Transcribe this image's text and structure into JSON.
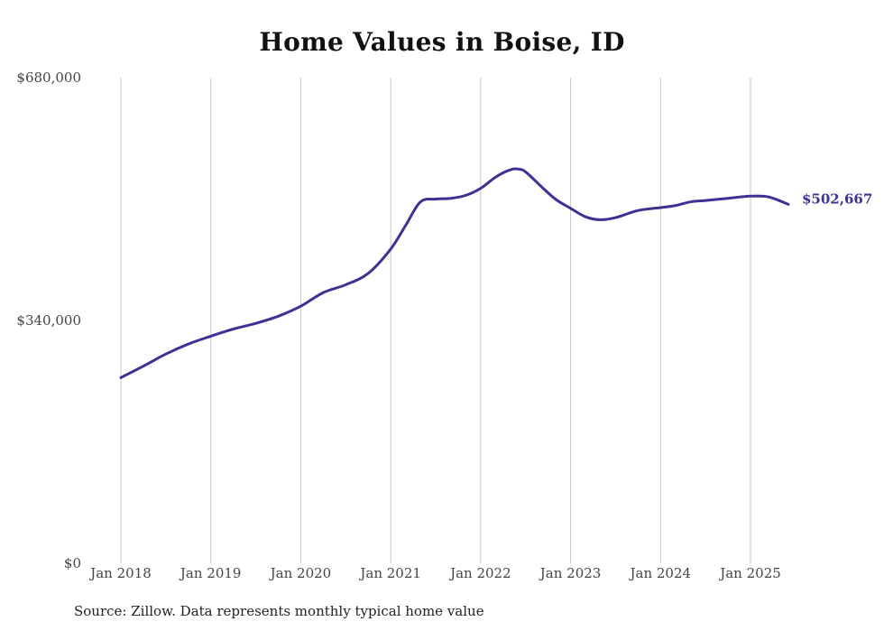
{
  "chart_data": {
    "type": "line",
    "title": "Home Values in Boise, ID",
    "source": "Source: Zillow. Data represents monthly typical home value",
    "ylim": [
      0,
      680000
    ],
    "y_ticks": [
      {
        "value": 0,
        "label": "$0"
      },
      {
        "value": 340000,
        "label": "$340,000"
      },
      {
        "value": 680000,
        "label": "$680,000"
      }
    ],
    "x_ticks": [
      {
        "value": 2018.0,
        "label": "Jan 2018"
      },
      {
        "value": 2019.0,
        "label": "Jan 2019"
      },
      {
        "value": 2020.0,
        "label": "Jan 2020"
      },
      {
        "value": 2021.0,
        "label": "Jan 2021"
      },
      {
        "value": 2022.0,
        "label": "Jan 2022"
      },
      {
        "value": 2023.0,
        "label": "Jan 2023"
      },
      {
        "value": 2024.0,
        "label": "Jan 2024"
      },
      {
        "value": 2025.0,
        "label": "Jan 2025"
      }
    ],
    "xlim": [
      2017.98,
      2025.44
    ],
    "grid": "vertical",
    "line_color": "#3b3292",
    "end_label": "$502,667",
    "series": [
      {
        "x": [
          2018.0,
          2018.25,
          2018.5,
          2018.75,
          2019.0,
          2019.25,
          2019.5,
          2019.75,
          2020.0,
          2020.25,
          2020.5,
          2020.75,
          2021.0,
          2021.17,
          2021.33,
          2021.5,
          2021.67,
          2021.83,
          2022.0,
          2022.17,
          2022.33,
          2022.42,
          2022.5,
          2022.67,
          2022.83,
          2023.0,
          2023.17,
          2023.33,
          2023.5,
          2023.75,
          2024.0,
          2024.17,
          2024.33,
          2024.5,
          2024.75,
          2025.0,
          2025.2,
          2025.42
        ],
        "y": [
          260000,
          276000,
          293000,
          307000,
          318000,
          328000,
          336000,
          346000,
          360000,
          379000,
          390000,
          406000,
          440000,
          474000,
          506000,
          510000,
          511000,
          515000,
          525000,
          541000,
          551000,
          552000,
          548000,
          528000,
          510000,
          497000,
          485000,
          481000,
          484000,
          494000,
          498000,
          501000,
          506000,
          508000,
          511000,
          514000,
          513000,
          502667
        ]
      }
    ]
  }
}
